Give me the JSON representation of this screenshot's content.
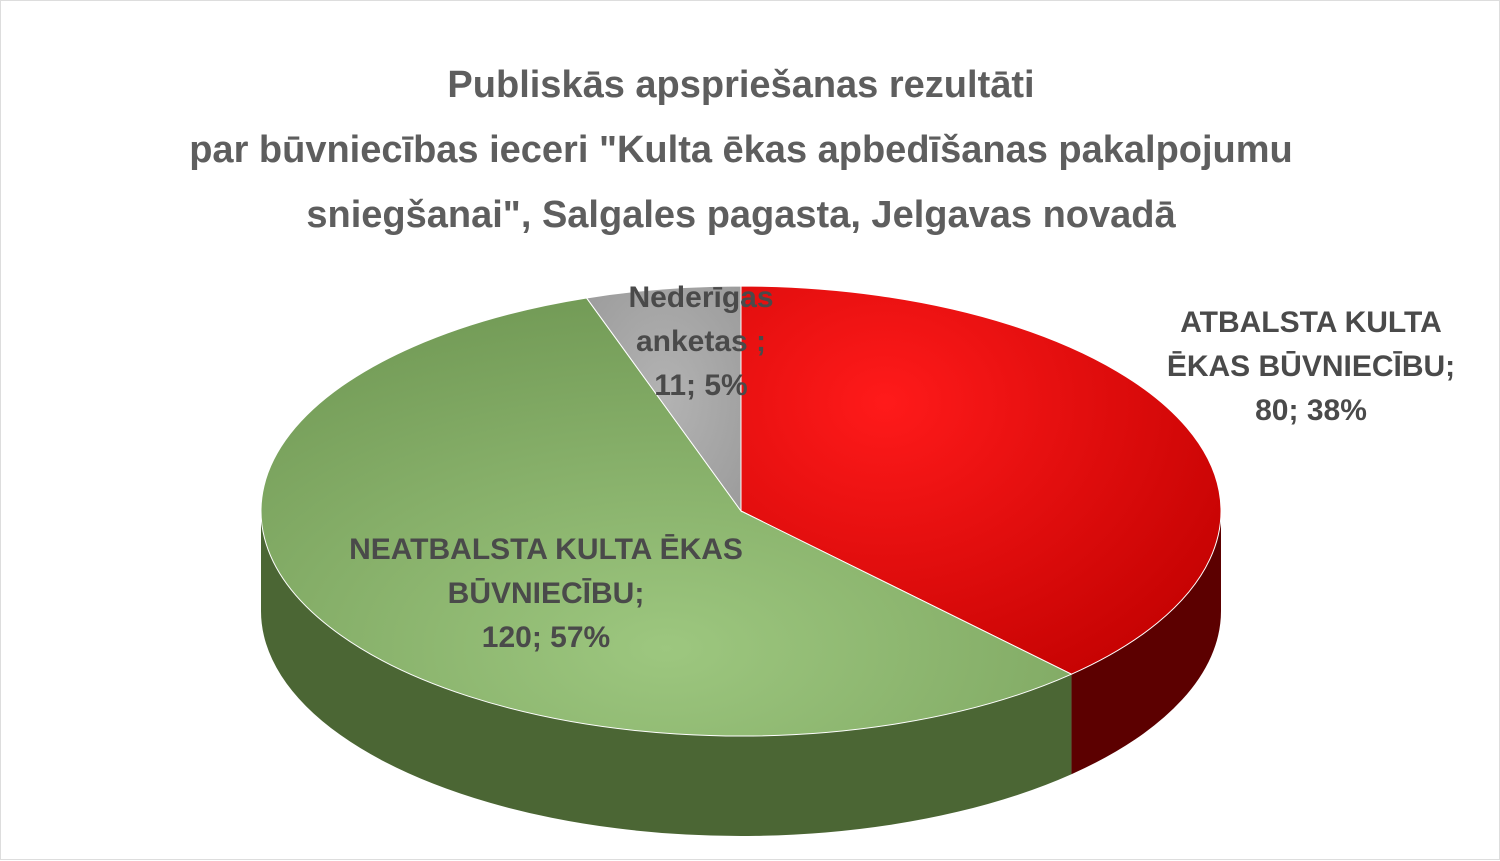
{
  "chart_data": {
    "type": "pie3d",
    "title": "Publiskās apspriešanas rezultāti\npar būvniecības ieceri \"Kulta ēkas apbedīšanas pakalpojumu\nsniegšanai\", Salgales pagasta, Jelgavas novadā",
    "categories": [
      "ATBALSTA KULTA ĒKAS BŪVNIECĪBU;",
      "NEATBALSTA KULTA ĒKAS BŪVNIECĪBU;",
      "Nederīgas anketas ;"
    ],
    "values": [
      80,
      120,
      11
    ],
    "value_labels": [
      "80; 38%",
      "120; 57%",
      "11; 5%"
    ],
    "colors": [
      "#e00000",
      "#86b366",
      "#a6a6a6"
    ]
  }
}
